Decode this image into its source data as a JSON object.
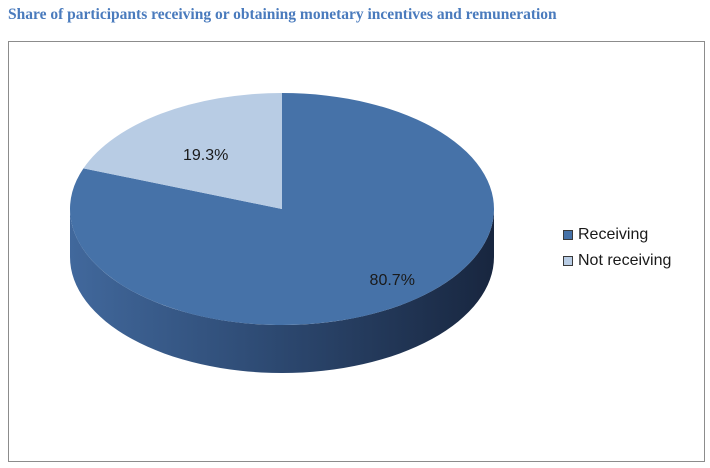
{
  "title": "Share of participants receiving or obtaining monetary incentives and remuneration",
  "colors": {
    "title": "#4a7bbd",
    "receiving_top": "#4672a8",
    "receiving_side_light": "#3f6699",
    "receiving_side_dark": "#1a2a45",
    "not_receiving_top": "#b8cce4",
    "frame_border": "#8c8c8c"
  },
  "chart_data": {
    "type": "pie",
    "title": "Share of participants receiving or obtaining monetary incentives and remuneration",
    "three_d": true,
    "legend_position": "right",
    "categories": [
      "Receiving",
      "Not receiving"
    ],
    "values": [
      80.7,
      19.3
    ],
    "data_labels": [
      "80.7%",
      "19.3%"
    ],
    "unit": "%"
  },
  "legend": {
    "items": [
      {
        "label": "Receiving",
        "color": "#4672a8"
      },
      {
        "label": "Not receiving",
        "color": "#b8cce4"
      }
    ]
  }
}
